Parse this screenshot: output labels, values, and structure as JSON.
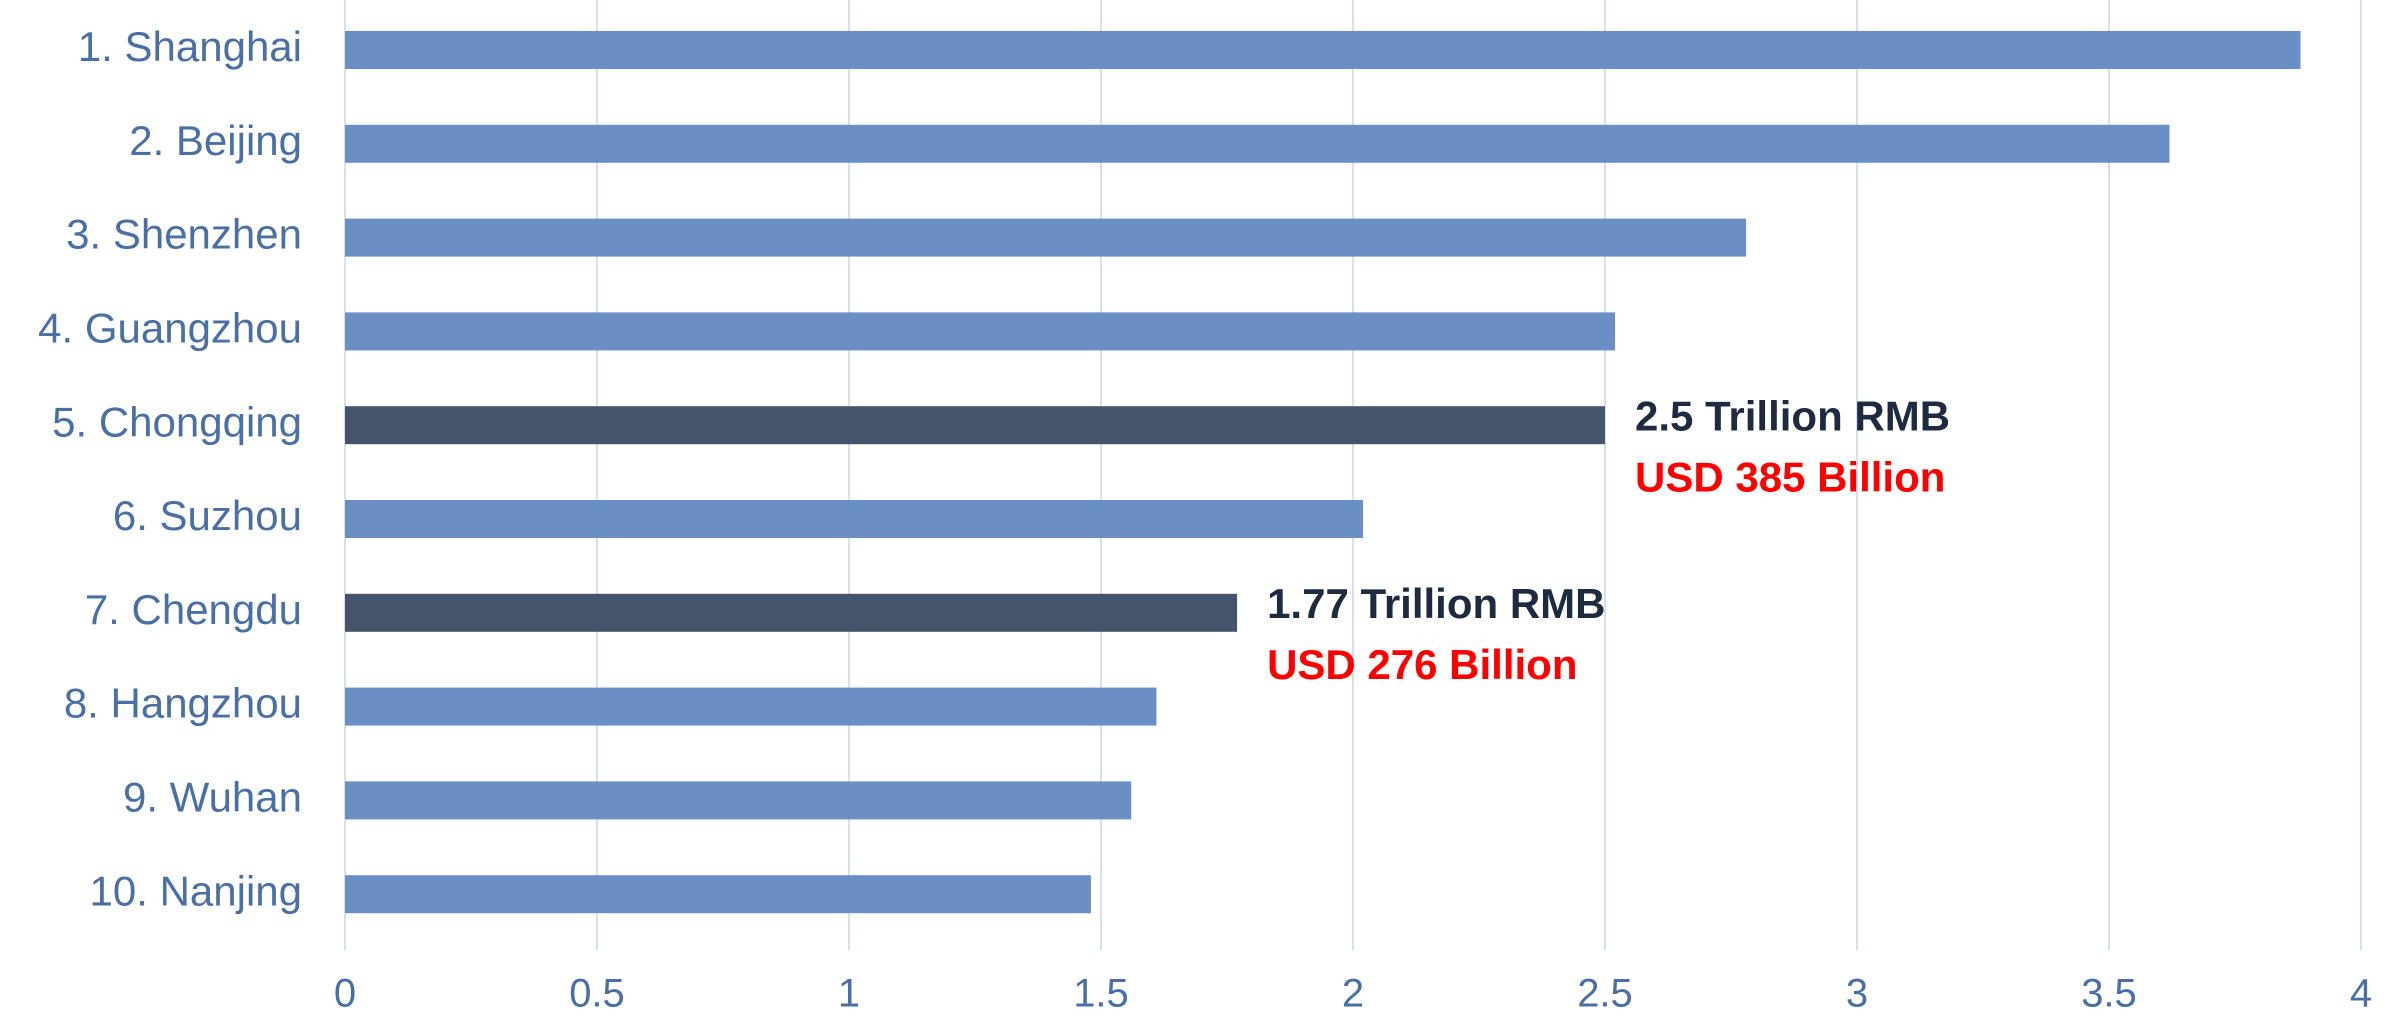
{
  "chart_data": {
    "type": "bar",
    "orientation": "horizontal",
    "categories": [
      "1. Shanghai",
      "2. Beijing",
      "3. Shenzhen",
      "4. Guangzhou",
      "5. Chongqing",
      "6. Suzhou",
      "7. Chengdu",
      "8. Hangzhou",
      "9. Wuhan",
      "10. Nanjing"
    ],
    "values": [
      3.88,
      3.62,
      2.78,
      2.52,
      2.5,
      2.02,
      1.77,
      1.61,
      1.56,
      1.48
    ],
    "colors": [
      "#6a8fc4",
      "#6a8fc4",
      "#6a8fc4",
      "#6a8fc4",
      "#44546a",
      "#6a8fc4",
      "#44546a",
      "#6a8fc4",
      "#6a8fc4",
      "#6a8fc4"
    ],
    "xlim": [
      0,
      4
    ],
    "xticks": [
      0,
      0.5,
      1,
      1.5,
      2,
      2.5,
      3,
      3.5,
      4
    ],
    "grid": true,
    "annotations": [
      {
        "category": 4,
        "text": "2.5 Trillion RMB",
        "subtext": "USD 385 Billion"
      },
      {
        "category": 6,
        "text": "1.77 Trillion RMB",
        "subtext": "USD 276 Billion"
      }
    ]
  }
}
